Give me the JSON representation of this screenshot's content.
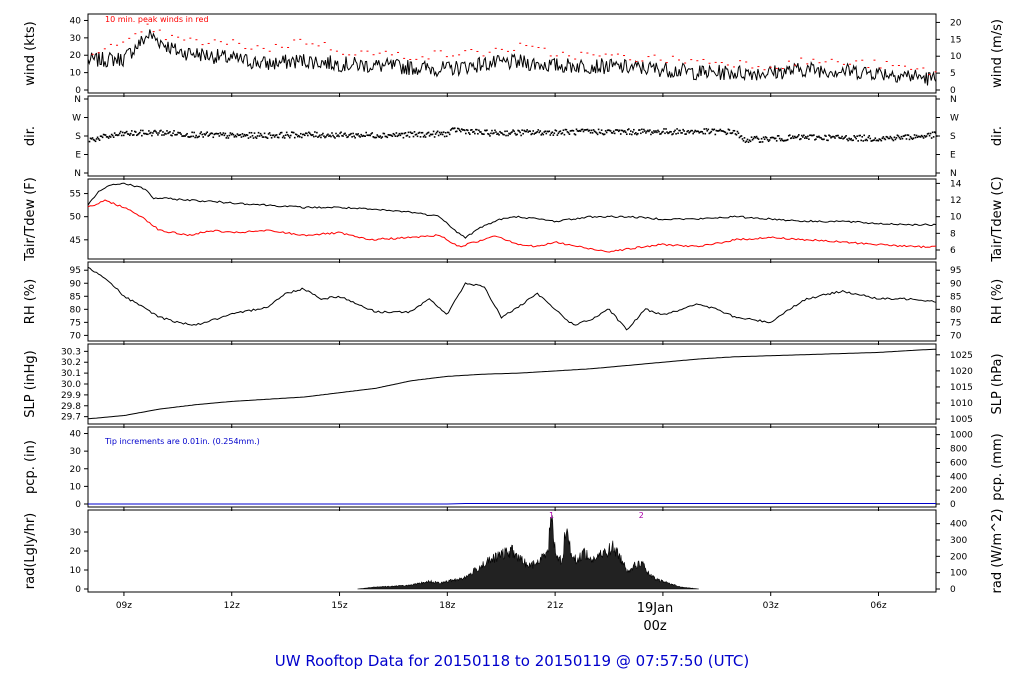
{
  "title": "UW Rooftop Data for 20150118  to  20150119 @ 07:57:50  (UTC)",
  "colors": {
    "axis": "#000000",
    "tair": "#000000",
    "tdew": "#ff0000",
    "peak": "#ff0000",
    "pcp": "#0000cc",
    "title": "#0000cc",
    "radmark": "#aa00aa",
    "date": "#ff0000"
  },
  "x_axis": {
    "ticks": [
      "09z",
      "12z",
      "15z",
      "18z",
      "21z",
      "00z",
      "03z",
      "06z"
    ],
    "date_label": "19Jan",
    "date_time": "00z"
  },
  "chart_data": [
    {
      "type": "line",
      "name": "wind",
      "ylabel_left": "wind (kts)",
      "ylabel_right": "wind (m/s)",
      "ylim": [
        0,
        42
      ],
      "left_ticks": [
        "0",
        "10",
        "20",
        "30",
        "40"
      ],
      "right_ticks": [
        "0",
        "5",
        "10",
        "15",
        "20"
      ],
      "annotation": "10 min. peak winds in red",
      "x_hours": [
        8.0,
        9.0,
        9.7,
        10.0,
        10.5,
        11.0,
        12.0,
        13.0,
        14.0,
        15.0,
        16.0,
        17.0,
        18.0,
        19.0,
        20.0,
        21.0,
        22.0,
        23.0,
        24.0,
        25.0,
        26.0,
        27.0,
        28.0,
        29.0,
        30.0,
        31.0,
        31.6
      ],
      "wind_kts": [
        17,
        18,
        32,
        28,
        22,
        21,
        18,
        15,
        17,
        15,
        14,
        13,
        12,
        15,
        16,
        14,
        14,
        13,
        12,
        10,
        10,
        10,
        12,
        11,
        10,
        8,
        6
      ],
      "peak_kts": [
        23,
        26,
        37,
        32,
        29,
        28,
        27,
        24,
        29,
        23,
        21,
        20,
        21,
        22,
        25,
        21,
        20,
        19,
        18,
        17,
        16,
        14,
        17,
        16,
        15,
        12,
        10
      ]
    },
    {
      "type": "scatter",
      "name": "dir",
      "ylabel_left": "dir.",
      "ylabel_right": "dir.",
      "left_ticks": [
        "N",
        "E",
        "S",
        "W",
        "N"
      ],
      "right_ticks": [
        "N",
        "E",
        "S",
        "W",
        "N"
      ],
      "x_hours": [
        8.0,
        9.0,
        10.0,
        11.0,
        12.0,
        13.0,
        14.0,
        15.0,
        16.0,
        17.0,
        18.0,
        18.2,
        19.0,
        20.0,
        21.0,
        22.0,
        23.0,
        24.0,
        25.0,
        26.0,
        26.2,
        27.0,
        28.0,
        29.0,
        30.0,
        31.0,
        31.6
      ],
      "dir_deg": [
        165,
        195,
        200,
        190,
        185,
        187,
        190,
        188,
        188,
        190,
        195,
        215,
        198,
        200,
        202,
        204,
        204,
        205,
        205,
        204,
        165,
        170,
        178,
        175,
        172,
        180,
        190
      ]
    },
    {
      "type": "line",
      "name": "temperature",
      "ylabel_left": "Tair/Tdew (F)",
      "ylabel_right": "Tair/Tdew (C)",
      "ylim": [
        41.5,
        57.5
      ],
      "left_ticks": [
        "45",
        "50",
        "55"
      ],
      "right_ticks": [
        "6",
        "8",
        "10",
        "12",
        "14"
      ],
      "series": [
        {
          "name": "Tair",
          "x_hours": [
            8.0,
            8.3,
            8.7,
            9.0,
            9.6,
            9.8,
            10.0,
            11.0,
            12.0,
            13.0,
            14.0,
            15.0,
            16.0,
            17.0,
            17.8,
            18.3,
            18.5,
            19.0,
            19.5,
            20.0,
            21.0,
            22.0,
            23.0,
            24.0,
            25.0,
            26.0,
            27.0,
            28.0,
            29.0,
            30.0,
            31.0,
            31.6
          ],
          "values": [
            52.5,
            55.5,
            57.0,
            57.2,
            56.0,
            54.0,
            54.0,
            53.5,
            53.0,
            52.5,
            52.0,
            52.0,
            51.5,
            51.0,
            50.0,
            46.5,
            45.5,
            48.0,
            49.5,
            50.0,
            49.0,
            50.0,
            50.0,
            49.5,
            49.5,
            50.0,
            49.5,
            49.0,
            49.0,
            48.5,
            48.3,
            48.2
          ]
        },
        {
          "name": "Tdew",
          "x_hours": [
            8.0,
            8.5,
            9.0,
            9.5,
            10.0,
            10.8,
            11.5,
            12.0,
            13.0,
            14.0,
            15.0,
            15.8,
            17.0,
            17.8,
            18.3,
            19.0,
            19.3,
            20.0,
            20.5,
            21.0,
            22.0,
            22.5,
            23.0,
            24.0,
            25.0,
            26.0,
            27.0,
            28.0,
            29.0,
            30.0,
            31.0,
            31.6
          ],
          "values": [
            52.0,
            53.5,
            52.0,
            50.0,
            47.0,
            46.0,
            47.0,
            46.5,
            47.0,
            46.0,
            46.5,
            45.0,
            45.5,
            46.0,
            43.5,
            45.0,
            46.0,
            44.0,
            43.5,
            44.5,
            43.0,
            42.5,
            43.0,
            44.0,
            43.5,
            45.0,
            45.5,
            45.0,
            44.5,
            44.0,
            43.5,
            43.5
          ]
        }
      ]
    },
    {
      "type": "line",
      "name": "rh",
      "ylabel_left": "RH (%)",
      "ylabel_right": "RH (%)",
      "ylim": [
        69,
        97
      ],
      "left_ticks": [
        "70",
        "75",
        "80",
        "85",
        "90",
        "95"
      ],
      "right_ticks": [
        "70",
        "75",
        "80",
        "85",
        "90",
        "95"
      ],
      "x_hours": [
        8.0,
        8.5,
        9.0,
        10.0,
        10.5,
        11.0,
        12.0,
        13.0,
        13.5,
        14.0,
        14.5,
        15.0,
        16.0,
        17.0,
        17.5,
        18.0,
        18.5,
        19.0,
        19.5,
        20.0,
        20.5,
        21.0,
        21.5,
        22.0,
        22.5,
        23.0,
        23.5,
        24.0,
        25.0,
        25.5,
        26.0,
        27.0,
        27.5,
        28.0,
        29.0,
        30.0,
        31.0,
        31.6
      ],
      "values": [
        96,
        92,
        85,
        77,
        75,
        74,
        78,
        81,
        86,
        88,
        84,
        85,
        79,
        79,
        84,
        78,
        90,
        89,
        77,
        81,
        86,
        80,
        74,
        76,
        80,
        72,
        80,
        78,
        82,
        80,
        77,
        75,
        80,
        84,
        87,
        84,
        84,
        83
      ]
    },
    {
      "type": "line",
      "name": "slp",
      "ylabel_left": "SLP (inHg)",
      "ylabel_right": "SLP (hPa)",
      "ylim": [
        29.66,
        30.34
      ],
      "left_ticks": [
        "29.7",
        "29.8",
        "29.9",
        "30.0",
        "30.1",
        "30.2",
        "30.3"
      ],
      "right_ticks": [
        "1005",
        "1010",
        "1015",
        "1020",
        "1025"
      ],
      "x_hours": [
        8.0,
        9.0,
        10.0,
        11.0,
        12.0,
        13.0,
        14.0,
        15.0,
        16.0,
        17.0,
        18.0,
        19.0,
        20.0,
        21.0,
        22.0,
        23.0,
        24.0,
        25.0,
        26.0,
        27.0,
        28.0,
        29.0,
        30.0,
        31.0,
        31.6
      ],
      "values": [
        29.68,
        29.71,
        29.77,
        29.81,
        29.84,
        29.86,
        29.88,
        29.92,
        29.96,
        30.03,
        30.07,
        30.09,
        30.1,
        30.12,
        30.14,
        30.17,
        30.2,
        30.23,
        30.25,
        30.26,
        30.27,
        30.28,
        30.29,
        30.31,
        30.32
      ]
    },
    {
      "type": "line",
      "name": "pcp",
      "ylabel_left": "pcp. (in)",
      "ylabel_right": "pcp. (mm)",
      "ylim": [
        0,
        42
      ],
      "left_ticks": [
        "0",
        "10",
        "20",
        "30",
        "40"
      ],
      "right_ticks": [
        "0",
        "200",
        "400",
        "600",
        "800",
        "1000"
      ],
      "annotation": "Tip increments are 0.01in. (0.254mm.)",
      "x_hours": [
        8.0,
        18.0,
        18.5,
        31.6
      ],
      "values": [
        0,
        0,
        0.3,
        0.3
      ]
    },
    {
      "type": "area",
      "name": "rad",
      "ylabel_left": "rad(Lgly/hr)",
      "ylabel_right": "rad (W/m^2)",
      "ylim": [
        0,
        40
      ],
      "left_ticks": [
        "0",
        "10",
        "20",
        "30"
      ],
      "right_ticks": [
        "0",
        "100",
        "200",
        "300",
        "400"
      ],
      "markers": [
        {
          "x": 20.9,
          "label": "1"
        },
        {
          "x": 23.4,
          "label": "2"
        }
      ],
      "x_hours": [
        15.5,
        16.0,
        17.0,
        17.5,
        17.8,
        18.0,
        18.5,
        19.0,
        19.5,
        19.8,
        20.0,
        20.3,
        20.6,
        20.8,
        20.9,
        21.0,
        21.2,
        21.3,
        21.4,
        21.6,
        21.8,
        22.0,
        22.3,
        22.6,
        22.8,
        23.0,
        23.2,
        23.4,
        23.6,
        23.8,
        24.0,
        24.5,
        25.0
      ],
      "values": [
        0,
        1,
        2,
        4,
        3,
        4,
        6,
        13,
        18,
        20,
        16,
        12,
        15,
        22,
        38,
        20,
        14,
        35,
        22,
        14,
        20,
        15,
        18,
        22,
        17,
        10,
        12,
        14,
        8,
        5,
        4,
        1,
        0
      ]
    }
  ]
}
